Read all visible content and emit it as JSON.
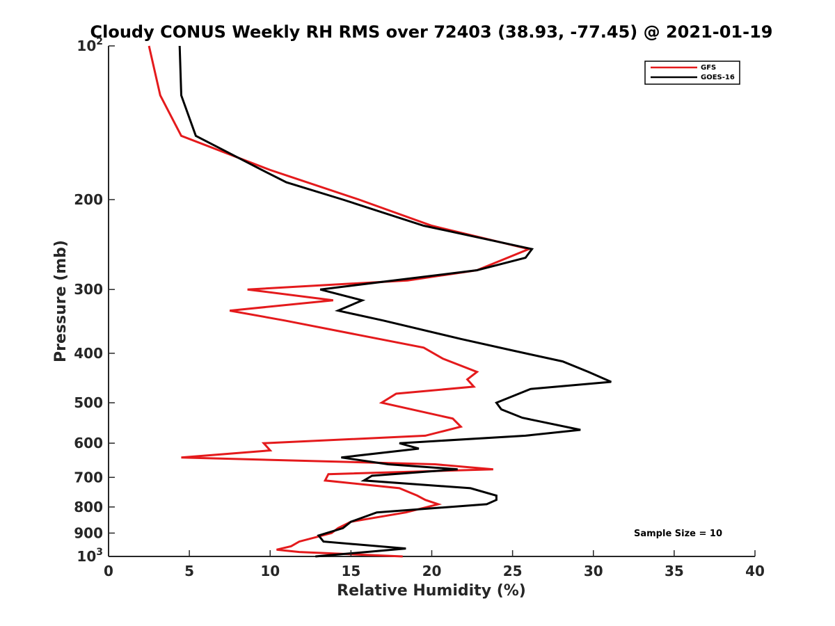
{
  "chart_data": {
    "type": "line",
    "title": "Cloudy CONUS Weekly RH RMS over 72403 (38.93, -77.45) @ 2021-01-19",
    "xlabel": "Relative Humidity (%)",
    "ylabel": "Pressure (mb)",
    "xlim": [
      0,
      40
    ],
    "ylim": [
      1000,
      100
    ],
    "y_scale": "log",
    "y_reversed": true,
    "grid": false,
    "legend_position": "top-right",
    "x_ticks": [
      0,
      5,
      10,
      15,
      20,
      25,
      30,
      35,
      40
    ],
    "x_tick_labels": [
      "0",
      "5",
      "10",
      "15",
      "20",
      "25",
      "30",
      "35",
      "40"
    ],
    "y_ticks": [
      100,
      200,
      300,
      400,
      500,
      600,
      700,
      800,
      900,
      1000
    ],
    "y_tick_labels": [
      "10^2",
      "200",
      "300",
      "400",
      "500",
      "600",
      "700",
      "800",
      "900",
      "10^3"
    ],
    "y_tick_labels_display": [
      {
        "base": "10",
        "sup": "2"
      },
      {
        "base": "200",
        "sup": ""
      },
      {
        "base": "300",
        "sup": ""
      },
      {
        "base": "400",
        "sup": ""
      },
      {
        "base": "500",
        "sup": ""
      },
      {
        "base": "600",
        "sup": ""
      },
      {
        "base": "700",
        "sup": ""
      },
      {
        "base": "800",
        "sup": ""
      },
      {
        "base": "900",
        "sup": ""
      },
      {
        "base": "10",
        "sup": "3"
      }
    ],
    "annotation": "Sample Size = 10",
    "series": [
      {
        "name": "GFS",
        "color": "#e41a1c",
        "points": [
          [
            2.5,
            100
          ],
          [
            3.2,
            125
          ],
          [
            4.5,
            150
          ],
          [
            10.0,
            175
          ],
          [
            15.5,
            200
          ],
          [
            20.0,
            225
          ],
          [
            26.0,
            250
          ],
          [
            22.8,
            275
          ],
          [
            18.5,
            288
          ],
          [
            8.6,
            300
          ],
          [
            13.9,
            315
          ],
          [
            7.5,
            330
          ],
          [
            10.9,
            345
          ],
          [
            19.5,
            390
          ],
          [
            20.7,
            410
          ],
          [
            22.8,
            435
          ],
          [
            22.2,
            450
          ],
          [
            22.6,
            465
          ],
          [
            17.8,
            480
          ],
          [
            16.9,
            500
          ],
          [
            21.3,
            537
          ],
          [
            21.8,
            557
          ],
          [
            19.6,
            580
          ],
          [
            9.6,
            600
          ],
          [
            10.0,
            620
          ],
          [
            4.5,
            640
          ],
          [
            20.2,
            660
          ],
          [
            23.8,
            675
          ],
          [
            13.6,
            690
          ],
          [
            13.4,
            710
          ],
          [
            18.0,
            735
          ],
          [
            19.1,
            760
          ],
          [
            19.6,
            775
          ],
          [
            20.4,
            790
          ],
          [
            18.4,
            820
          ],
          [
            15.0,
            855
          ],
          [
            14.2,
            880
          ],
          [
            13.8,
            900
          ],
          [
            11.8,
            935
          ],
          [
            11.3,
            955
          ],
          [
            10.4,
            970
          ],
          [
            11.8,
            980
          ],
          [
            18.2,
            1000
          ]
        ]
      },
      {
        "name": "GOES-16",
        "color": "#000000",
        "points": [
          [
            4.4,
            100
          ],
          [
            4.5,
            125
          ],
          [
            5.4,
            150
          ],
          [
            9.5,
            175
          ],
          [
            11.0,
            185
          ],
          [
            14.5,
            200
          ],
          [
            19.5,
            225
          ],
          [
            26.2,
            250
          ],
          [
            25.8,
            260
          ],
          [
            22.8,
            275
          ],
          [
            13.1,
            300
          ],
          [
            15.7,
            315
          ],
          [
            14.2,
            330
          ],
          [
            17.0,
            345
          ],
          [
            21.8,
            375
          ],
          [
            25.0,
            395
          ],
          [
            28.1,
            415
          ],
          [
            29.7,
            435
          ],
          [
            31.1,
            455
          ],
          [
            26.1,
            470
          ],
          [
            24.0,
            500
          ],
          [
            24.3,
            515
          ],
          [
            25.6,
            535
          ],
          [
            29.2,
            565
          ],
          [
            25.8,
            580
          ],
          [
            18.0,
            600
          ],
          [
            19.2,
            615
          ],
          [
            14.4,
            640
          ],
          [
            17.3,
            660
          ],
          [
            21.6,
            675
          ],
          [
            16.3,
            695
          ],
          [
            15.8,
            710
          ],
          [
            22.4,
            735
          ],
          [
            24.0,
            760
          ],
          [
            24.0,
            775
          ],
          [
            23.4,
            790
          ],
          [
            16.6,
            820
          ],
          [
            15.0,
            855
          ],
          [
            14.5,
            880
          ],
          [
            13.0,
            910
          ],
          [
            13.3,
            935
          ],
          [
            18.4,
            965
          ],
          [
            12.8,
            1000
          ]
        ]
      }
    ]
  }
}
